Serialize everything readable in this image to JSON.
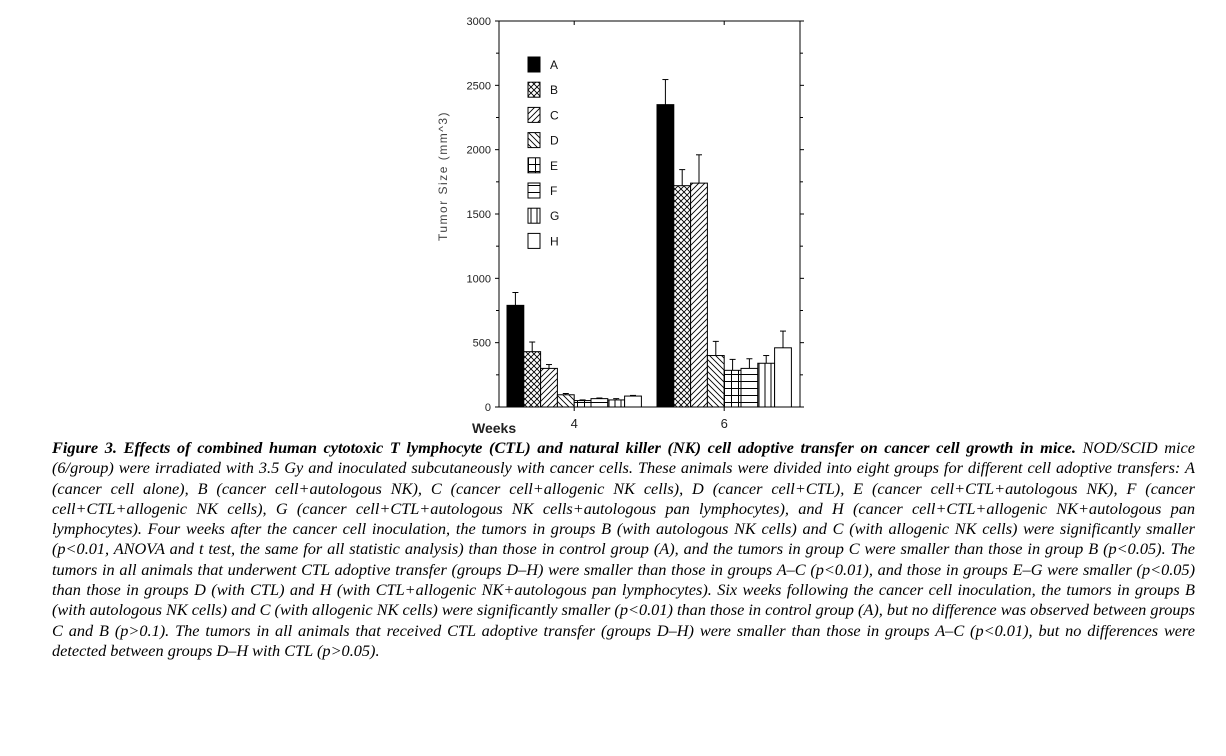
{
  "chart_data": {
    "type": "bar",
    "ylabel": "Tumor Size (mm^3)",
    "xlabel": "Weeks",
    "categories": [
      "4",
      "6"
    ],
    "ylim": [
      0,
      3000
    ],
    "yticks": [
      "0",
      "500",
      "1000",
      "1500",
      "2000",
      "2500",
      "3000"
    ],
    "legend_position": "top-left",
    "error_bars": true,
    "series": [
      {
        "name": "A",
        "pattern": "solid-black",
        "values": [
          790,
          2350
        ],
        "errors": [
          100,
          195
        ]
      },
      {
        "name": "B",
        "pattern": "crosshatch",
        "values": [
          430,
          1720
        ],
        "errors": [
          75,
          125
        ]
      },
      {
        "name": "C",
        "pattern": "diagonal-up",
        "values": [
          300,
          1740
        ],
        "errors": [
          30,
          220
        ]
      },
      {
        "name": "D",
        "pattern": "diagonal-down",
        "values": [
          95,
          400
        ],
        "errors": [
          10,
          110
        ]
      },
      {
        "name": "E",
        "pattern": "grid",
        "values": [
          50,
          285
        ],
        "errors": [
          5,
          85
        ]
      },
      {
        "name": "F",
        "pattern": "horizontal",
        "values": [
          65,
          300
        ],
        "errors": [
          5,
          75
        ]
      },
      {
        "name": "G",
        "pattern": "vertical",
        "values": [
          55,
          340
        ],
        "errors": [
          10,
          60
        ]
      },
      {
        "name": "H",
        "pattern": "empty",
        "values": [
          85,
          460
        ],
        "errors": [
          5,
          130
        ]
      }
    ]
  },
  "caption": {
    "label": "Figure 3.",
    "title": "Effects of combined human cytotoxic T lymphocyte (CTL) and natural killer (NK) cell adoptive transfer on cancer cell growth in mice.",
    "body": "NOD/SCID mice (6/group) were irradiated with 3.5 Gy and inoculated subcutaneously with cancer cells. These animals were divided into eight groups for different cell adoptive transfers: A (cancer cell alone), B (cancer cell+autologous NK), C (cancer cell+allogenic NK cells), D (cancer cell+CTL), E (cancer cell+CTL+autologous NK), F (cancer cell+CTL+allogenic NK cells), G (cancer cell+CTL+autologous NK cells+autologous pan lymphocytes), and H (cancer cell+CTL+allogenic NK+autologous pan lymphocytes).  Four weeks after the cancer cell inoculation, the tumors in groups B (with autologous NK cells) and C (with allogenic NK cells) were significantly smaller (p<0.01, ANOVA and t test, the same for all statistic analysis) than those in control group (A), and the tumors in group C were smaller than those in group B (p<0.05). The tumors in all animals that underwent CTL adoptive transfer (groups D–H) were smaller than those in groups A–C (p<0.01), and those in groups E–G were smaller (p<0.05) than those in groups D (with CTL) and H (with CTL+allogenic NK+autologous pan lymphocytes). Six weeks following the cancer cell inoculation, the tumors in groups B (with autologous NK cells) and C (with allogenic NK cells) were significantly smaller (p<0.01) than those in control group (A), but no difference was observed between groups C and B (p>0.1). The tumors in all animals that received CTL adoptive transfer (groups D–H) were smaller than those in groups A–C (p<0.01), but no differences were detected between groups D–H with CTL (p>0.05)."
  }
}
